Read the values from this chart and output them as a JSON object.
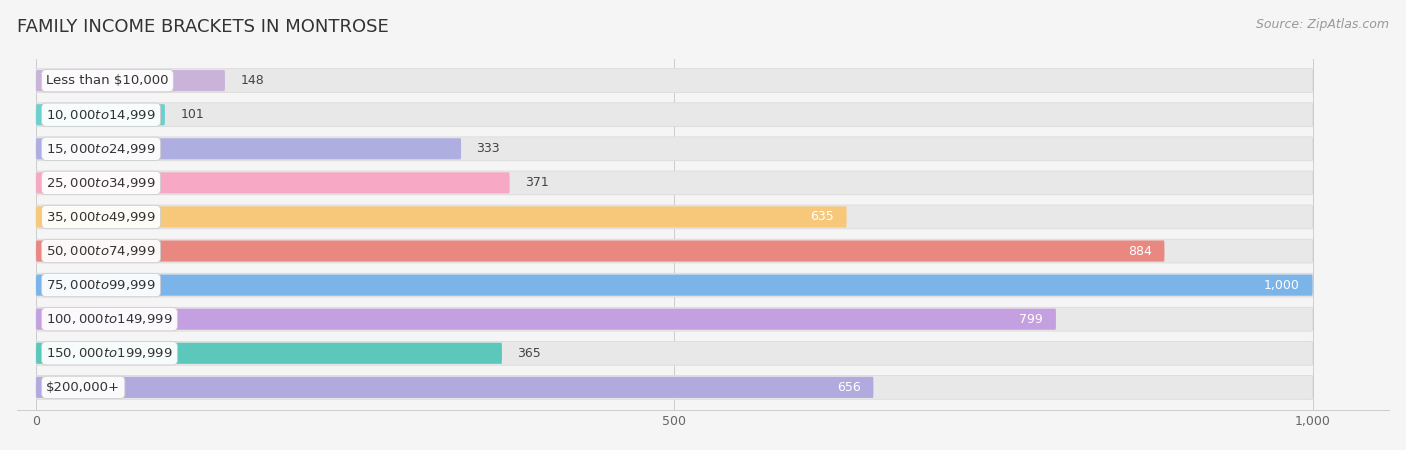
{
  "title": "FAMILY INCOME BRACKETS IN MONTROSE",
  "source": "Source: ZipAtlas.com",
  "categories": [
    "Less than $10,000",
    "$10,000 to $14,999",
    "$15,000 to $24,999",
    "$25,000 to $34,999",
    "$35,000 to $49,999",
    "$50,000 to $74,999",
    "$75,000 to $99,999",
    "$100,000 to $149,999",
    "$150,000 to $199,999",
    "$200,000+"
  ],
  "values": [
    148,
    101,
    333,
    371,
    635,
    884,
    1000,
    799,
    365,
    656
  ],
  "colors": [
    "#c9b3d9",
    "#6dcfce",
    "#aeaee0",
    "#f7a8c4",
    "#f7c87a",
    "#e88880",
    "#7ab4e8",
    "#c4a0e0",
    "#5cc8bc",
    "#b0aade"
  ],
  "bar_height": 0.62,
  "xlim": [
    0,
    1000
  ],
  "xticks": [
    0,
    500,
    1000
  ],
  "background_color": "#f5f5f5",
  "row_bg_color": "#e8e8e8",
  "title_fontsize": 13,
  "label_fontsize": 9.5,
  "value_fontsize": 9,
  "source_fontsize": 9
}
